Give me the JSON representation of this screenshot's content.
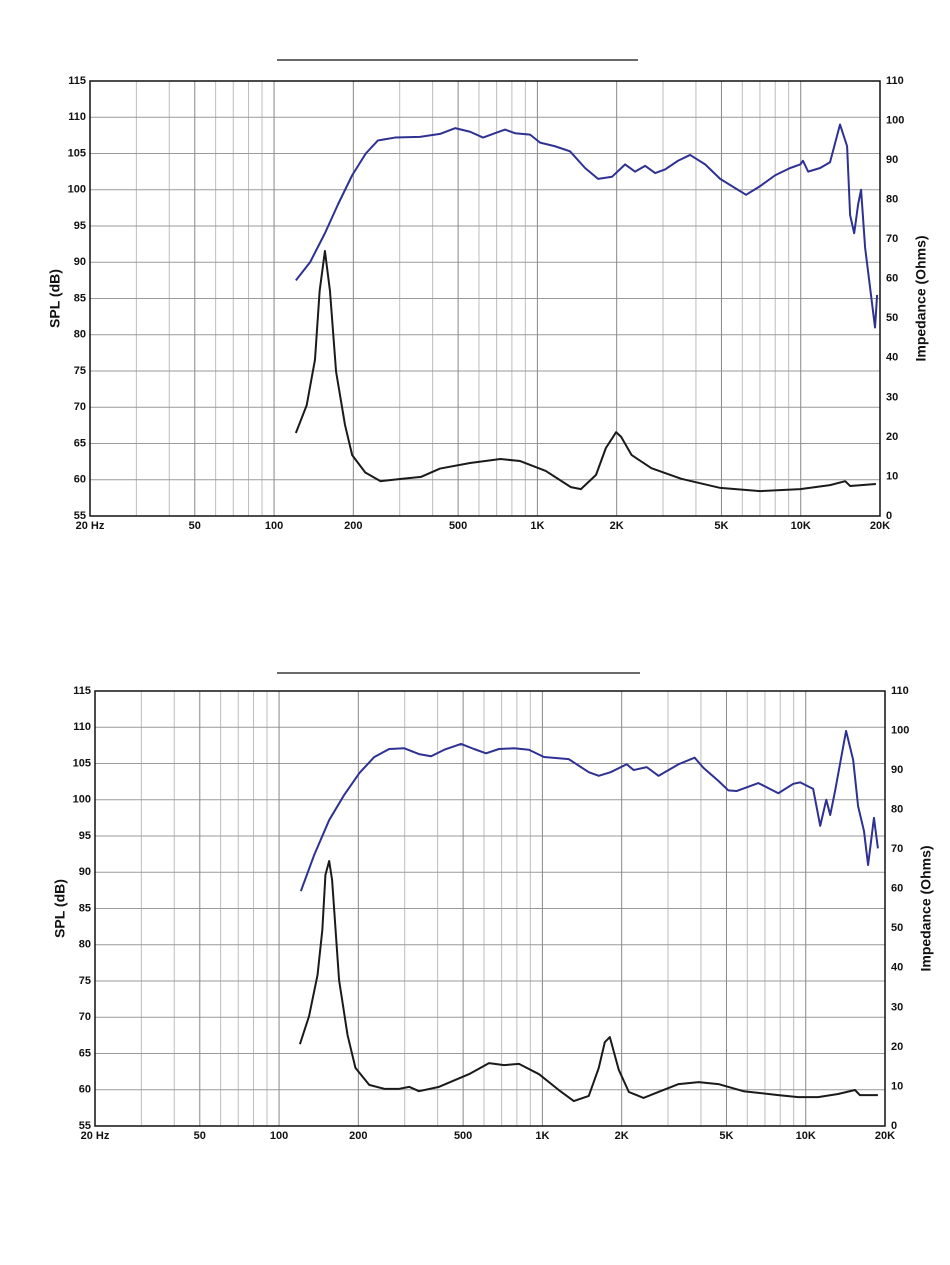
{
  "chart_data": [
    {
      "type": "line",
      "xscale": "log",
      "grid": true,
      "ylabel": "SPL (dB)",
      "y2label": "Impedance (Ohms)",
      "xlim": [
        20,
        20000
      ],
      "xticks": [
        {
          "value": 20,
          "label": "20 Hz"
        },
        50,
        100,
        200,
        500,
        {
          "value": 1000,
          "label": "1K"
        },
        {
          "value": 2000,
          "label": "2K"
        },
        {
          "value": 5000,
          "label": "5K"
        },
        {
          "value": 10000,
          "label": "10K"
        },
        {
          "value": 20000,
          "label": "20K"
        }
      ],
      "ylim": [
        55,
        115
      ],
      "yticks": [
        55,
        60,
        65,
        70,
        75,
        80,
        85,
        90,
        95,
        100,
        105,
        110,
        115
      ],
      "y2lim": [
        0,
        110
      ],
      "y2ticks": [
        0,
        10,
        20,
        30,
        40,
        50,
        60,
        70,
        80,
        90,
        100,
        110
      ],
      "series": [
        {
          "color": "#2e3192",
          "x": [
            121,
            137,
            156,
            175,
            198,
            223,
            248,
            288,
            358,
            427,
            487,
            555,
            622,
            690,
            754,
            822,
            938,
            1024,
            1166,
            1330,
            1517,
            1700,
            1922,
            2154,
            2350,
            2565,
            2800,
            3055,
            3420,
            3800,
            4335,
            4945,
            6200,
            7010,
            8000,
            9120,
            9960,
            10200,
            10670,
            11850,
            12920,
            14100,
            15000,
            15400,
            15960,
            16520,
            16950,
            17560,
            19150,
            19500
          ],
          "values": [
            87.5,
            90,
            94,
            98,
            102,
            105,
            106.8,
            107.2,
            107.3,
            107.7,
            108.5,
            108,
            107.2,
            107.8,
            108.3,
            107.8,
            107.6,
            106.5,
            106,
            105.3,
            103,
            101.5,
            101.8,
            103.5,
            102.5,
            103.3,
            102.3,
            102.8,
            104,
            104.8,
            103.5,
            101.5,
            99.3,
            100.5,
            102,
            103,
            103.5,
            104,
            102.5,
            103,
            103.8,
            109,
            106,
            96.5,
            94,
            98,
            100,
            92,
            81,
            85.5
          ]
        },
        {
          "color": "#1a1a1a",
          "axis": "y2",
          "x": [
            121,
            133,
            143,
            149,
            156,
            163,
            172,
            186,
            198,
            222,
            254,
            304,
            362,
            427,
            555,
            724,
            860,
            1076,
            1340,
            1463,
            1670,
            1820,
            1990,
            2080,
            2280,
            2710,
            3520,
            4950,
            7010,
            9960,
            12920,
            14750,
            15400,
            19300
          ],
          "values": [
            21,
            28,
            39.5,
            57,
            67,
            57,
            36.5,
            23,
            15.4,
            11,
            8.8,
            9.4,
            9.9,
            12,
            13.4,
            14.4,
            13.9,
            11.4,
            7.3,
            6.8,
            10.4,
            17.2,
            21.2,
            20,
            15.4,
            12.1,
            9.4,
            7.1,
            6.3,
            6.8,
            7.8,
            8.8,
            7.6,
            8.1
          ]
        }
      ]
    },
    {
      "type": "line",
      "xscale": "log",
      "grid": true,
      "ylabel": "SPL (dB)",
      "y2label": "Impedance (Ohms)",
      "xlim": [
        20,
        20000
      ],
      "xticks": [
        {
          "value": 20,
          "label": "20 Hz"
        },
        50,
        100,
        200,
        500,
        {
          "value": 1000,
          "label": "1K"
        },
        {
          "value": 2000,
          "label": "2K"
        },
        {
          "value": 5000,
          "label": "5K"
        },
        {
          "value": 10000,
          "label": "10K"
        },
        {
          "value": 20000,
          "label": "20K"
        }
      ],
      "ylim": [
        55,
        115
      ],
      "yticks": [
        55,
        60,
        65,
        70,
        75,
        80,
        85,
        90,
        95,
        100,
        105,
        110,
        115
      ],
      "y2lim": [
        0,
        110
      ],
      "y2ticks": [
        0,
        10,
        20,
        30,
        40,
        50,
        60,
        70,
        80,
        90,
        100,
        110
      ],
      "series": [
        {
          "color": "#2e3192",
          "x": [
            121,
            136,
            155,
            177,
            202,
            230,
            262,
            299,
            340,
            378,
            424,
            491,
            550,
            611,
            684,
            780,
            889,
            1014,
            1259,
            1500,
            1637,
            1816,
            2090,
            2220,
            2490,
            2760,
            3290,
            3785,
            4090,
            4660,
            5080,
            5460,
            6610,
            7870,
            8970,
            9530,
            10670,
            11350,
            11970,
            12390,
            12940,
            14230,
            15140,
            15810,
            16640,
            17250,
            18160,
            18800
          ],
          "values": [
            87.4,
            92.4,
            97.2,
            100.7,
            103.7,
            105.9,
            107,
            107.1,
            106.3,
            106,
            106.9,
            107.7,
            107,
            106.4,
            107,
            107.1,
            106.9,
            105.9,
            105.6,
            103.8,
            103.3,
            103.8,
            104.9,
            104.1,
            104.5,
            103.3,
            104.9,
            105.8,
            104.4,
            102.6,
            101.3,
            101.2,
            102.3,
            100.9,
            102.2,
            102.4,
            101.5,
            96.4,
            100,
            97.9,
            101.3,
            109.5,
            105.5,
            99.1,
            95.7,
            91,
            97.5,
            93.3
          ]
        },
        {
          "color": "#1a1a1a",
          "axis": "y2",
          "x": [
            120,
            130,
            140,
            146,
            150,
            155,
            159,
            169,
            182,
            195,
            220,
            251,
            286,
            312,
            340,
            405,
            526,
            627,
            715,
            815,
            971,
            1154,
            1316,
            1500,
            1637,
            1726,
            1803,
            1950,
            2130,
            2420,
            2760,
            3290,
            3920,
            4660,
            5800,
            7870,
            9360,
            11140,
            13270,
            15380,
            16070,
            18800
          ],
          "values": [
            20.7,
            27.8,
            38.2,
            49.6,
            63.5,
            67,
            62.2,
            36.9,
            23,
            14.7,
            10.4,
            9.4,
            9.4,
            9.9,
            8.8,
            9.9,
            13.1,
            15.9,
            15.4,
            15.7,
            13.1,
            9.1,
            6.3,
            7.6,
            14.7,
            21.2,
            22.5,
            14.2,
            8.6,
            7.1,
            8.6,
            10.6,
            11.1,
            10.6,
            8.8,
            7.8,
            7.3,
            7.3,
            8.1,
            9.1,
            7.8,
            7.8
          ]
        }
      ]
    }
  ]
}
